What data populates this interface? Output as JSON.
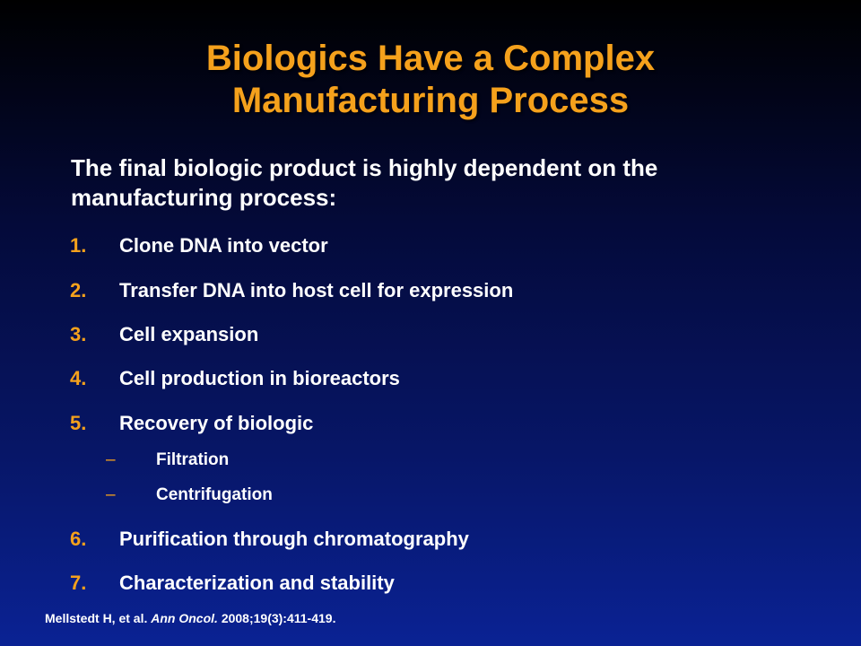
{
  "colors": {
    "accent": "#f5a11c",
    "text": "#ffffff",
    "background_top": "#000000",
    "background_bottom": "#0a2294"
  },
  "title": {
    "line1": "Biologics Have a Complex",
    "line2": "Manufacturing Process"
  },
  "intro": {
    "line1": "The final biologic product is highly dependent on the",
    "line2": "manufacturing process:"
  },
  "steps": [
    {
      "number": "1.",
      "label": "Clone DNA into vector"
    },
    {
      "number": "2.",
      "label": "Transfer DNA into host cell for expression"
    },
    {
      "number": "3.",
      "label": "Cell expansion"
    },
    {
      "number": "4.",
      "label": "Cell production in bioreactors"
    },
    {
      "number": "5.",
      "label": "Recovery of biologic"
    },
    {
      "number": "6.",
      "label": "Purification through chromatography"
    },
    {
      "number": "7.",
      "label": "Characterization and stability"
    }
  ],
  "recovery_substeps": [
    {
      "bullet": "–",
      "label": "Filtration"
    },
    {
      "bullet": "–",
      "label": "Centrifugation"
    }
  ],
  "citation": {
    "authors": "Mellstedt H, et al.",
    "journal": "Ann Oncol.",
    "details": "2008;19(3):411-419."
  }
}
